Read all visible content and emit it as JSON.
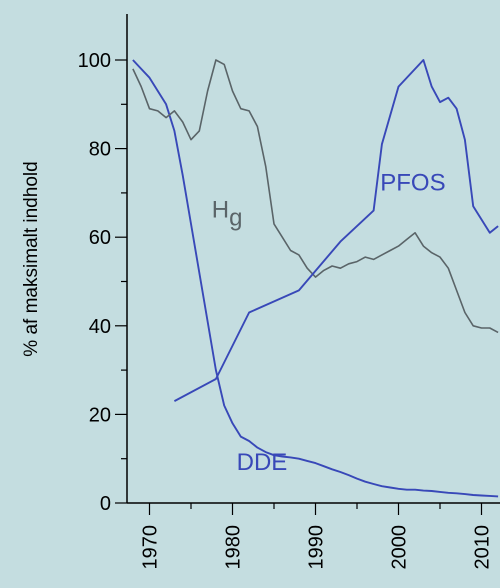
{
  "chart_data": {
    "type": "line",
    "title": "",
    "xlabel": "",
    "ylabel": "% af maksimalt indhold",
    "xlim": [
      1966,
      2013
    ],
    "ylim": [
      0,
      100
    ],
    "x_ticks": [
      1970,
      1980,
      1990,
      2000,
      2010
    ],
    "y_ticks": [
      0,
      20,
      40,
      60,
      80,
      100
    ],
    "grid": false,
    "legend": "none",
    "series": [
      {
        "name": "DDE",
        "label_main": "DDE",
        "color": "#3848b8",
        "x": [
          1968,
          1969,
          1970,
          1971,
          1972,
          1973,
          1974,
          1975,
          1976,
          1977,
          1978,
          1979,
          1980,
          1981,
          1982,
          1983,
          1984,
          1985,
          1986,
          1987,
          1988,
          1989,
          1990,
          1991,
          1992,
          1993,
          1994,
          1995,
          1996,
          1997,
          1998,
          1999,
          2000,
          2001,
          2002,
          2003,
          2004,
          2005,
          2006,
          2007,
          2008,
          2009,
          2010,
          2011,
          2012
        ],
        "y": [
          100,
          98,
          96,
          93,
          90,
          84,
          74,
          63,
          52,
          41,
          30,
          22,
          18,
          15,
          14,
          12.5,
          11.5,
          10.8,
          10.5,
          10.3,
          10.0,
          9.5,
          9.0,
          8.3,
          7.6,
          7.0,
          6.3,
          5.5,
          4.8,
          4.3,
          3.8,
          3.5,
          3.2,
          3.0,
          3.0,
          2.8,
          2.7,
          2.5,
          2.3,
          2.2,
          2.0,
          1.8,
          1.7,
          1.6,
          1.5
        ]
      },
      {
        "name": "Hg",
        "label_main": "H",
        "label_sub": "g",
        "color": "#5a6468",
        "x": [
          1968,
          1969,
          1970,
          1971,
          1972,
          1973,
          1974,
          1975,
          1976,
          1977,
          1978,
          1979,
          1980,
          1981,
          1982,
          1983,
          1984,
          1985,
          1986,
          1987,
          1988,
          1989,
          1990,
          1991,
          1992,
          1993,
          1994,
          1995,
          1996,
          1997,
          1998,
          1999,
          2000,
          2001,
          2002,
          2003,
          2004,
          2005,
          2006,
          2007,
          2008,
          2009,
          2010,
          2011,
          2012
        ],
        "y": [
          98,
          94,
          89,
          88.5,
          87,
          88.5,
          86,
          82,
          84,
          93,
          100,
          99,
          93,
          89,
          88.5,
          85,
          76,
          63,
          60,
          57,
          56,
          53,
          51,
          52.5,
          53.5,
          53,
          54,
          54.5,
          55.5,
          55,
          56,
          57,
          58,
          59.5,
          61,
          58,
          56.5,
          55.5,
          53,
          48,
          43,
          40,
          39.5,
          39.5,
          38.5
        ]
      },
      {
        "name": "PFOS",
        "label_main": "PFOS",
        "color": "#3848b8",
        "x": [
          1973,
          1978,
          1982,
          1988,
          1993,
          1997,
          1998,
          2000,
          2003,
          2004,
          2005,
          2006,
          2007,
          2008,
          2009,
          2011,
          2012
        ],
        "y": [
          23,
          28,
          43,
          48,
          59,
          66,
          81,
          94,
          100,
          94,
          90.5,
          91.5,
          89,
          82,
          67,
          61,
          62.5
        ]
      }
    ]
  }
}
